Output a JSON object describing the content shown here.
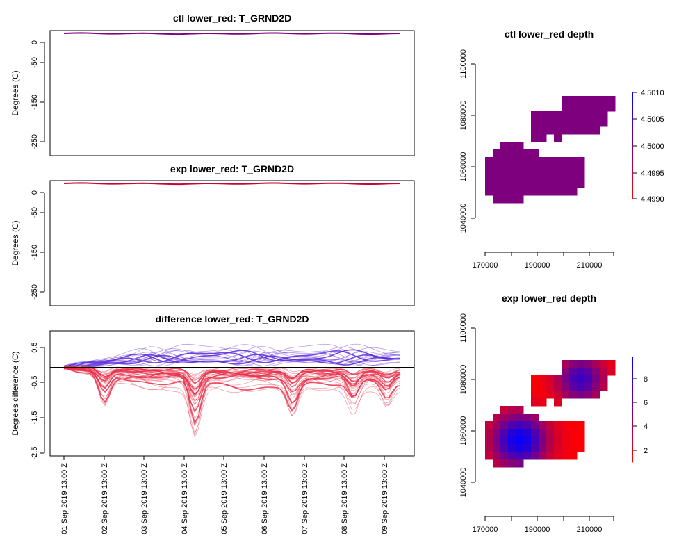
{
  "chart_data": [
    {
      "type": "line",
      "title": "ctl lower_red: T_GRND2D",
      "ylabel": "Degrees (C)",
      "yticks": [
        "0",
        "-50",
        "-150",
        "-250"
      ],
      "ytick_values": [
        0,
        -50,
        -150,
        -250
      ],
      "ylim": [
        -277,
        17
      ],
      "series_main_level": 10,
      "series_low_level": -273,
      "color": "#800080"
    },
    {
      "type": "line",
      "title": "exp lower_red: T_GRND2D",
      "ylabel": "Degrees (C)",
      "yticks": [
        "0",
        "-50",
        "-150",
        "-250"
      ],
      "ytick_values": [
        0,
        -50,
        -150,
        -250
      ],
      "ylim": [
        -277,
        17
      ],
      "series_main_level": 10,
      "series_low_level": -273,
      "color": "#cc0033"
    },
    {
      "type": "line",
      "title": "difference lower_red: T_GRND2D",
      "ylabel": "Degrees difference (C)",
      "yticks": [
        "0.5",
        "-0.5",
        "-1.5",
        "-2.5"
      ],
      "ytick_values": [
        0.5,
        -0.5,
        -1.5,
        -2.5
      ],
      "ylim": [
        -2.55,
        1.05
      ],
      "reference_line": 0,
      "x_tick_labels": [
        "01 Sep 2019 13:00 Z",
        "02 Sep 2019 13:00 Z",
        "03 Sep 2019 13:00 Z",
        "04 Sep 2019 13:00 Z",
        "05 Sep 2019 13:00 Z",
        "06 Sep 2019 13:00 Z",
        "07 Sep 2019 13:00 Z",
        "08 Sep 2019 13:00 Z",
        "09 Sep 2019 13:00 Z"
      ],
      "colors": {
        "positive": "#5a2bd8",
        "negative": "#e8304a",
        "zero_line": "#000000"
      }
    },
    {
      "type": "heatmap",
      "title": "ctl lower_red depth",
      "x_ticks": [
        "170000",
        "190000",
        "210000"
      ],
      "x_tick_values": [
        170000,
        190000,
        210000
      ],
      "y_ticks": [
        "1040000",
        "1060000",
        "1080000",
        "1100000"
      ],
      "y_tick_values": [
        1040000,
        1060000,
        1080000,
        1100000
      ],
      "xlim": [
        163000,
        224000
      ],
      "ylim": [
        1037000,
        1101000
      ],
      "colorbar_ticks": [
        "4.4990",
        "4.4995",
        "4.5000",
        "4.5005",
        "4.5010"
      ],
      "colorbar_values": [
        4.499,
        4.4995,
        4.5,
        4.5005,
        4.501
      ],
      "colorbar_range": [
        4.499,
        4.501
      ],
      "cell_value": 4.5,
      "colors": {
        "low": "#ff0000",
        "high": "#0000ff",
        "cell": "#7f007f"
      }
    },
    {
      "type": "heatmap",
      "title": "exp lower_red depth",
      "x_ticks": [
        "170000",
        "190000",
        "210000"
      ],
      "x_tick_values": [
        170000,
        190000,
        210000
      ],
      "y_ticks": [
        "1040000",
        "1060000",
        "1080000",
        "1100000"
      ],
      "y_tick_values": [
        1040000,
        1060000,
        1080000,
        1100000
      ],
      "xlim": [
        163000,
        224000
      ],
      "ylim": [
        1037000,
        1101000
      ],
      "colorbar_ticks": [
        "2",
        "4",
        "6",
        "8"
      ],
      "colorbar_values": [
        2,
        4,
        6,
        8
      ],
      "colorbar_range": [
        1,
        9.8
      ],
      "colors": {
        "low": "#ff0000",
        "high": "#0000ff"
      }
    }
  ]
}
